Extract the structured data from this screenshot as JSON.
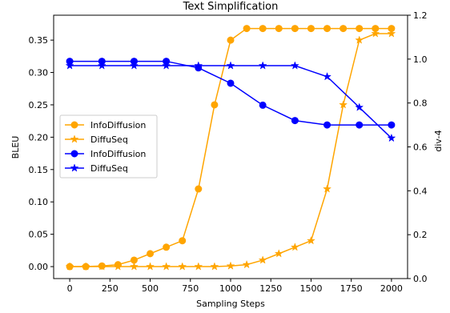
{
  "chart_data": {
    "type": "line",
    "title": "Text Simplification",
    "xlabel": "Sampling Steps",
    "ylabel_left": "BLEU",
    "ylabel_right": "div-4",
    "xlim": [
      -100,
      2100
    ],
    "ylim_left": [
      -0.0185,
      0.3885
    ],
    "ylim_right": [
      0.0,
      1.2
    ],
    "xticks": [
      0,
      250,
      500,
      750,
      1000,
      1250,
      1500,
      1750,
      2000
    ],
    "xtick_labels": [
      "0",
      "250",
      "500",
      "750",
      "1000",
      "1250",
      "1500",
      "1750",
      "2000"
    ],
    "yticks_left": [
      0.0,
      0.05,
      0.1,
      0.15,
      0.2,
      0.25,
      0.3,
      0.35
    ],
    "ytick_labels_left": [
      "0.00",
      "0.05",
      "0.10",
      "0.15",
      "0.20",
      "0.25",
      "0.30",
      "0.35"
    ],
    "yticks_right": [
      0.0,
      0.2,
      0.4,
      0.6,
      0.8,
      1.0,
      1.2
    ],
    "ytick_labels_right": [
      "0.0",
      "0.2",
      "0.4",
      "0.6",
      "0.8",
      "1.0",
      "1.2"
    ],
    "colors": {
      "bleu": "#ffa500",
      "div": "#0000ff"
    },
    "legend_position": "center-left",
    "series": [
      {
        "name": "InfoDiffusion",
        "axis": "left",
        "marker": "circle",
        "color": "#ffa500",
        "x": [
          0,
          100,
          200,
          300,
          400,
          500,
          600,
          700,
          800,
          900,
          1000,
          1100,
          1200,
          1300,
          1400,
          1500,
          1600,
          1700,
          1800,
          1900,
          2000
        ],
        "y": [
          0.0,
          0.0,
          0.001,
          0.003,
          0.01,
          0.02,
          0.03,
          0.04,
          0.12,
          0.25,
          0.35,
          0.368,
          0.368,
          0.368,
          0.368,
          0.368,
          0.368,
          0.368,
          0.368,
          0.368,
          0.368
        ]
      },
      {
        "name": "DiffuSeq",
        "axis": "left",
        "marker": "star",
        "color": "#ffa500",
        "x": [
          0,
          100,
          200,
          300,
          400,
          500,
          600,
          700,
          800,
          900,
          1000,
          1100,
          1200,
          1300,
          1400,
          1500,
          1600,
          1700,
          1800,
          1900,
          2000
        ],
        "y": [
          0.0,
          0.0,
          0.0,
          0.0,
          0.0,
          0.0,
          0.0,
          0.0,
          0.0,
          0.0,
          0.001,
          0.003,
          0.01,
          0.02,
          0.03,
          0.04,
          0.12,
          0.25,
          0.35,
          0.36,
          0.36
        ]
      },
      {
        "name": "InfoDiffusion",
        "axis": "right",
        "marker": "circle",
        "color": "#0000ff",
        "x": [
          0,
          200,
          400,
          600,
          800,
          1000,
          1200,
          1400,
          1600,
          1800,
          2000
        ],
        "y": [
          0.99,
          0.99,
          0.99,
          0.99,
          0.96,
          0.89,
          0.79,
          0.72,
          0.7,
          0.7,
          0.7
        ]
      },
      {
        "name": "DiffuSeq",
        "axis": "right",
        "marker": "star",
        "color": "#0000ff",
        "x": [
          0,
          200,
          400,
          600,
          800,
          1000,
          1200,
          1400,
          1600,
          1800,
          2000
        ],
        "y": [
          0.97,
          0.97,
          0.97,
          0.97,
          0.97,
          0.97,
          0.97,
          0.97,
          0.92,
          0.78,
          0.64
        ]
      }
    ]
  }
}
